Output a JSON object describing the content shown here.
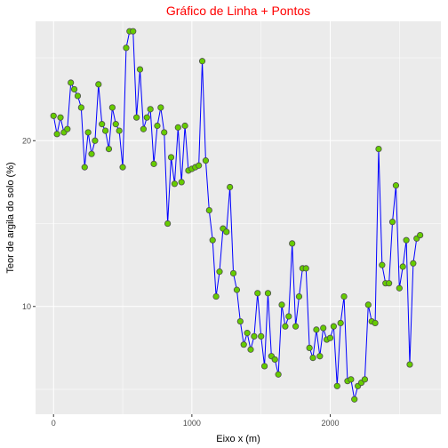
{
  "colors": {
    "panel_bg": "#ebebeb",
    "grid": "#ffffff",
    "line": "#0000ff",
    "point_fill": "#66cc00",
    "point_stroke": "#4d4d4d",
    "title": "#ff0000",
    "tick_mark": "#333333"
  },
  "chart_data": {
    "type": "line",
    "title": "Gráfico de Linha + Pontos",
    "xlabel": "Eixo x (m)",
    "ylabel": "Teor de argila do solo (%)",
    "xlim": [
      -130,
      2800
    ],
    "ylim": [
      3.5,
      27.2
    ],
    "x_ticks": [
      0,
      1000,
      2000
    ],
    "y_ticks": [
      10,
      20
    ],
    "x_minor": [
      500,
      1500,
      2500
    ],
    "y_minor": [
      5,
      15,
      25
    ],
    "grid": true,
    "legend": "none",
    "series": [
      {
        "markers": true,
        "x": [
          0,
          25,
          50,
          75,
          100,
          125,
          150,
          175,
          200,
          225,
          250,
          275,
          300,
          325,
          350,
          375,
          400,
          425,
          450,
          475,
          500,
          525,
          550,
          575,
          600,
          625,
          650,
          675,
          700,
          725,
          750,
          775,
          800,
          825,
          850,
          875,
          900,
          925,
          950,
          975,
          1000,
          1025,
          1050,
          1075,
          1100,
          1125,
          1150,
          1175,
          1200,
          1225,
          1250,
          1275,
          1300,
          1325,
          1350,
          1375,
          1400,
          1425,
          1450,
          1475,
          1500,
          1525,
          1550,
          1575,
          1600,
          1625,
          1650,
          1675,
          1700,
          1725,
          1750,
          1775,
          1800,
          1825,
          1850,
          1875,
          1900,
          1925,
          1950,
          1975,
          2000,
          2025,
          2050,
          2075,
          2100,
          2125,
          2150,
          2175,
          2200,
          2225,
          2250,
          2275,
          2300,
          2325,
          2350,
          2375,
          2400,
          2425,
          2450,
          2475,
          2500,
          2525,
          2550,
          2575,
          2600,
          2625,
          2650
        ],
        "y": [
          21.5,
          20.4,
          21.4,
          20.5,
          20.7,
          23.5,
          23.1,
          22.7,
          22.0,
          18.4,
          20.5,
          19.2,
          20.0,
          23.4,
          21.0,
          20.6,
          19.5,
          22.0,
          21.0,
          20.6,
          18.4,
          25.6,
          26.6,
          26.6,
          21.4,
          24.3,
          20.7,
          21.4,
          21.9,
          18.6,
          20.9,
          22.0,
          20.5,
          15.0,
          19.0,
          17.4,
          20.8,
          17.5,
          20.9,
          18.2,
          18.3,
          18.4,
          18.5,
          24.8,
          18.8,
          15.8,
          14.0,
          10.6,
          12.1,
          14.7,
          14.5,
          17.2,
          12.0,
          11.0,
          9.1,
          7.7,
          8.4,
          7.4,
          8.2,
          10.8,
          8.2,
          6.4,
          10.8,
          7.0,
          6.8,
          5.9,
          10.1,
          8.8,
          9.4,
          13.8,
          8.8,
          10.6,
          12.3,
          12.3,
          7.5,
          6.9,
          8.6,
          7.0,
          8.7,
          8.0,
          8.1,
          8.8,
          5.2,
          9.0,
          10.6,
          5.5,
          5.6,
          4.4,
          5.2,
          5.4,
          5.6,
          10.1,
          9.1,
          9.0,
          19.5,
          12.5,
          11.4,
          11.4,
          15.1,
          17.3,
          11.1,
          12.4,
          14.0,
          6.5,
          12.6,
          14.1,
          14.3
        ]
      }
    ]
  }
}
